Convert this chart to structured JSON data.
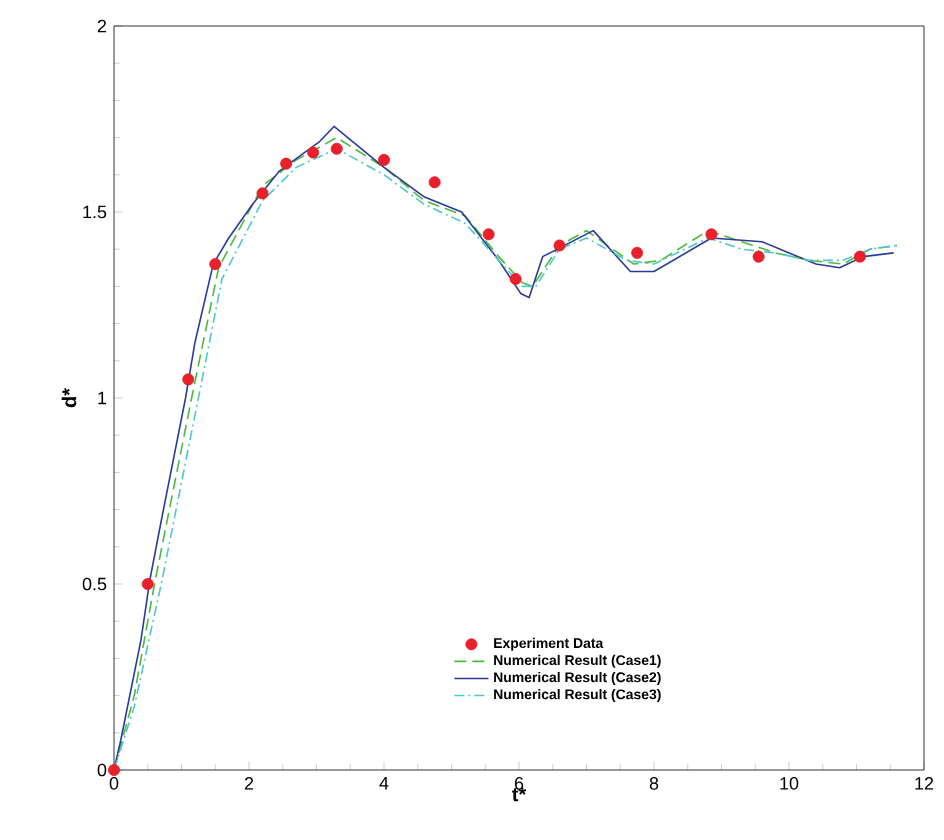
{
  "chart_data": {
    "type": "line",
    "xlabel": "t*",
    "ylabel": "d*",
    "xlim": [
      0,
      12
    ],
    "ylim": [
      0,
      2
    ],
    "xticks": [
      0,
      2,
      4,
      6,
      8,
      10,
      12
    ],
    "yticks": [
      0,
      0.5,
      1,
      1.5,
      2
    ],
    "legend": "bottom",
    "grid": false,
    "series": [
      {
        "name": "Experiment Data",
        "type": "scatter",
        "marker": "circle",
        "color": "#e8202a",
        "x": [
          0,
          0.5,
          1.1,
          1.5,
          2.2,
          2.55,
          2.95,
          3.3,
          4.0,
          4.75,
          5.55,
          5.95,
          6.6,
          7.75,
          8.85,
          9.55,
          11.05
        ],
        "values": [
          0,
          0.5,
          1.05,
          1.36,
          1.55,
          1.63,
          1.66,
          1.67,
          1.64,
          1.58,
          1.44,
          1.32,
          1.41,
          1.39,
          1.44,
          1.38,
          1.38
        ]
      },
      {
        "name": "Numerical Result (Case1)",
        "line_style": "dashed",
        "color": "#4cbb3c",
        "x": [
          0,
          0.3,
          0.6,
          1.15,
          1.55,
          2.2,
          2.7,
          3.3,
          4.0,
          4.6,
          5.2,
          5.7,
          6.05,
          6.2,
          6.6,
          7.0,
          7.7,
          8.1,
          8.8,
          9.3,
          9.8,
          10.3,
          10.8,
          11.2,
          11.6
        ],
        "values": [
          0,
          0.2,
          0.5,
          1.0,
          1.35,
          1.57,
          1.64,
          1.7,
          1.62,
          1.53,
          1.49,
          1.38,
          1.31,
          1.3,
          1.41,
          1.45,
          1.36,
          1.37,
          1.45,
          1.42,
          1.39,
          1.37,
          1.36,
          1.4,
          1.41
        ]
      },
      {
        "name": "Numerical Result (Case2)",
        "line_style": "solid",
        "color": "#2b3b9a",
        "x": [
          0,
          0.1,
          0.4,
          0.53,
          0.7,
          1.06,
          1.2,
          1.47,
          1.7,
          2.05,
          2.45,
          2.75,
          3.05,
          3.26,
          4.0,
          4.6,
          5.15,
          5.7,
          6.03,
          6.15,
          6.35,
          7.1,
          7.65,
          8.0,
          8.85,
          9.6,
          10.4,
          10.75,
          11.1,
          11.55
        ],
        "values": [
          0,
          0.08,
          0.35,
          0.51,
          0.67,
          1.0,
          1.15,
          1.36,
          1.43,
          1.52,
          1.61,
          1.65,
          1.69,
          1.73,
          1.62,
          1.54,
          1.5,
          1.37,
          1.28,
          1.27,
          1.38,
          1.45,
          1.34,
          1.34,
          1.43,
          1.42,
          1.36,
          1.35,
          1.38,
          1.39
        ]
      },
      {
        "name": "Numerical Result (Case3)",
        "line_style": "dashdot",
        "color": "#4cc8d0",
        "x": [
          0,
          0.3,
          0.7,
          1.25,
          1.6,
          2.2,
          2.7,
          3.3,
          4.0,
          4.6,
          5.2,
          5.7,
          6.05,
          6.25,
          6.6,
          7.0,
          7.6,
          8.0,
          8.8,
          9.3,
          9.8,
          10.3,
          10.8,
          11.2,
          11.6
        ],
        "values": [
          0,
          0.17,
          0.5,
          1.0,
          1.32,
          1.53,
          1.62,
          1.67,
          1.6,
          1.52,
          1.47,
          1.37,
          1.3,
          1.3,
          1.4,
          1.43,
          1.37,
          1.36,
          1.43,
          1.4,
          1.39,
          1.37,
          1.37,
          1.4,
          1.41
        ]
      }
    ]
  }
}
